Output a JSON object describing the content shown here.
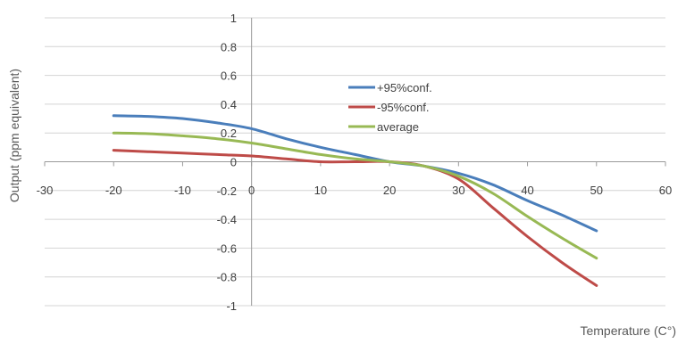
{
  "chart_data": {
    "type": "line",
    "title": "",
    "xlabel": "Temperature (C°)",
    "ylabel": "Output (ppm equivalent)",
    "xlim": [
      -30,
      60
    ],
    "ylim": [
      -1,
      1
    ],
    "x_ticks": [
      -30,
      -20,
      -10,
      0,
      10,
      20,
      30,
      40,
      50,
      60
    ],
    "y_ticks": [
      1,
      0.8,
      0.6,
      0.4,
      0.2,
      0,
      -0.2,
      -0.4,
      -0.6,
      -0.8,
      -1
    ],
    "x_tick_labels": [
      "-30",
      "-20",
      "-10",
      "0",
      "10",
      "20",
      "30",
      "40",
      "50",
      "60"
    ],
    "y_tick_labels": [
      "1",
      "0.8",
      "0.6",
      "0.4",
      "0.2",
      "0",
      "-0.2",
      "-0.4",
      "-0.6",
      "-0.8",
      "-1"
    ],
    "grid": "horizontal",
    "legend_position": "center",
    "x": [
      -20,
      -15,
      -10,
      -5,
      0,
      5,
      10,
      15,
      20,
      25,
      30,
      35,
      40,
      45,
      50
    ],
    "series": [
      {
        "name": "+95%conf.",
        "color": "#4a7ebb",
        "values": [
          0.32,
          0.315,
          0.3,
          0.27,
          0.23,
          0.16,
          0.1,
          0.05,
          0.0,
          -0.03,
          -0.08,
          -0.16,
          -0.27,
          -0.37,
          -0.48
        ]
      },
      {
        "name": "-95%conf.",
        "color": "#be4b48",
        "values": [
          0.08,
          0.07,
          0.06,
          0.05,
          0.04,
          0.02,
          0.0,
          0.0,
          0.0,
          -0.03,
          -0.12,
          -0.32,
          -0.52,
          -0.7,
          -0.86
        ]
      },
      {
        "name": "average",
        "color": "#98b954",
        "values": [
          0.2,
          0.195,
          0.18,
          0.16,
          0.13,
          0.09,
          0.05,
          0.02,
          0.0,
          -0.03,
          -0.1,
          -0.22,
          -0.38,
          -0.53,
          -0.67
        ]
      }
    ]
  }
}
